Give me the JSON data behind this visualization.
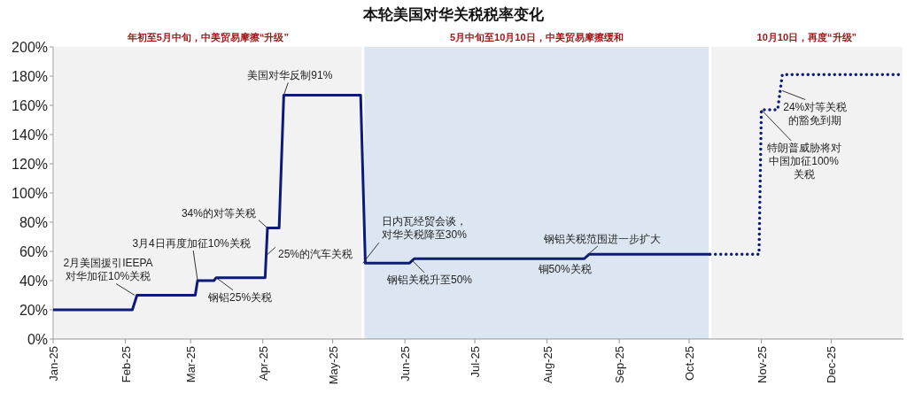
{
  "chart_data": {
    "type": "line",
    "title": "本轮美国对华关税税率变化",
    "xlim": [
      "2025-01-01",
      "2026-01-01"
    ],
    "xticks": [
      {
        "value": "2025-01-01",
        "label": "Jan-25"
      },
      {
        "value": "2025-02-01",
        "label": "Feb-25"
      },
      {
        "value": "2025-03-01",
        "label": "Mar-25"
      },
      {
        "value": "2025-04-01",
        "label": "Apr-25"
      },
      {
        "value": "2025-05-01",
        "label": "May-25"
      },
      {
        "value": "2025-06-01",
        "label": "Jun-25"
      },
      {
        "value": "2025-07-01",
        "label": "Jul-25"
      },
      {
        "value": "2025-08-01",
        "label": "Aug-25"
      },
      {
        "value": "2025-09-01",
        "label": "Sep-25"
      },
      {
        "value": "2025-10-01",
        "label": "Oct-25"
      },
      {
        "value": "2025-11-01",
        "label": "Nov-25"
      },
      {
        "value": "2025-12-01",
        "label": "Dec-25"
      }
    ],
    "ylim": [
      0,
      200
    ],
    "yticks": [
      {
        "value": 0,
        "label": "0%"
      },
      {
        "value": 20,
        "label": "20%"
      },
      {
        "value": 40,
        "label": "40%"
      },
      {
        "value": 60,
        "label": "60%"
      },
      {
        "value": 80,
        "label": "80%"
      },
      {
        "value": 100,
        "label": "100%"
      },
      {
        "value": 120,
        "label": "120%"
      },
      {
        "value": 140,
        "label": "140%"
      },
      {
        "value": 160,
        "label": "160%"
      },
      {
        "value": 180,
        "label": "180%"
      },
      {
        "value": 200,
        "label": "200%"
      }
    ],
    "grid": false,
    "marker": "none",
    "bands": [
      {
        "axis": "x",
        "from": "2025-01-01",
        "to": "2025-05-14",
        "label": "年初至5月中旬，中美贸易摩擦“升级”",
        "color": "#f2f2f2"
      },
      {
        "axis": "x",
        "from": "2025-05-14",
        "to": "2025-10-10",
        "label": "5月中旬至10月10日，中美贸易摩擦缓和",
        "color": "#dce6f2"
      },
      {
        "axis": "x",
        "from": "2025-10-10",
        "to": "2026-01-01",
        "label": "10月10日，再度“升级”",
        "color": "#f2f2f2"
      }
    ],
    "series": [
      {
        "color": "#0c1a78",
        "line_style": "solid",
        "x": [
          "2025-01-01",
          "2025-02-04",
          "2025-02-06",
          "2025-03-03",
          "2025-03-04",
          "2025-03-11",
          "2025-03-12",
          "2025-04-02",
          "2025-04-03",
          "2025-04-08",
          "2025-04-10",
          "2025-05-13",
          "2025-05-15",
          "2025-06-03",
          "2025-06-05",
          "2025-08-17",
          "2025-08-19",
          "2025-10-10"
        ],
        "values": [
          20,
          20,
          30,
          30,
          40,
          40,
          42,
          42,
          76,
          76,
          167,
          167,
          52,
          52,
          55,
          55,
          58,
          58
        ]
      },
      {
        "color": "#0c1a78",
        "line_style": "dotted",
        "x": [
          "2025-10-10",
          "2025-10-31",
          "2025-11-01",
          "2025-11-08",
          "2025-11-10",
          "2025-12-31"
        ],
        "values": [
          58,
          58,
          157,
          157,
          181,
          181
        ]
      }
    ],
    "annotations": [
      {
        "text": "2月美国援引IEEPA对华加征10%关税",
        "x": "2025-02-05",
        "y": 30
      },
      {
        "text": "3月4日再度加征10%关税",
        "x": "2025-03-04",
        "y": 40
      },
      {
        "text": "钢铝25%关税",
        "x": "2025-03-12",
        "y": 42
      },
      {
        "text": "34%的对等关税",
        "x": "2025-04-03",
        "y": 76
      },
      {
        "text": "25%的汽车关税",
        "x": "2025-04-03",
        "y": 58
      },
      {
        "text": "美国对华反制91%",
        "x": "2025-04-10",
        "y": 167
      },
      {
        "text": "日内瓦经贸会谈，对华关税降至30%",
        "x": "2025-05-14",
        "y": 52
      },
      {
        "text": "钢铝关税升至50%",
        "x": "2025-06-04",
        "y": 54
      },
      {
        "text": "铜50%关税",
        "x": "2025-08-01",
        "y": 55
      },
      {
        "text": "钢铝关税范围进一步扩大",
        "x": "2025-08-18",
        "y": 57
      },
      {
        "text": "特朗普威胁将对中国加征100%关税",
        "x": "2025-11-01",
        "y": 157
      },
      {
        "text": "24%对等关税的豁免到期",
        "x": "2025-11-10",
        "y": 170
      }
    ]
  }
}
